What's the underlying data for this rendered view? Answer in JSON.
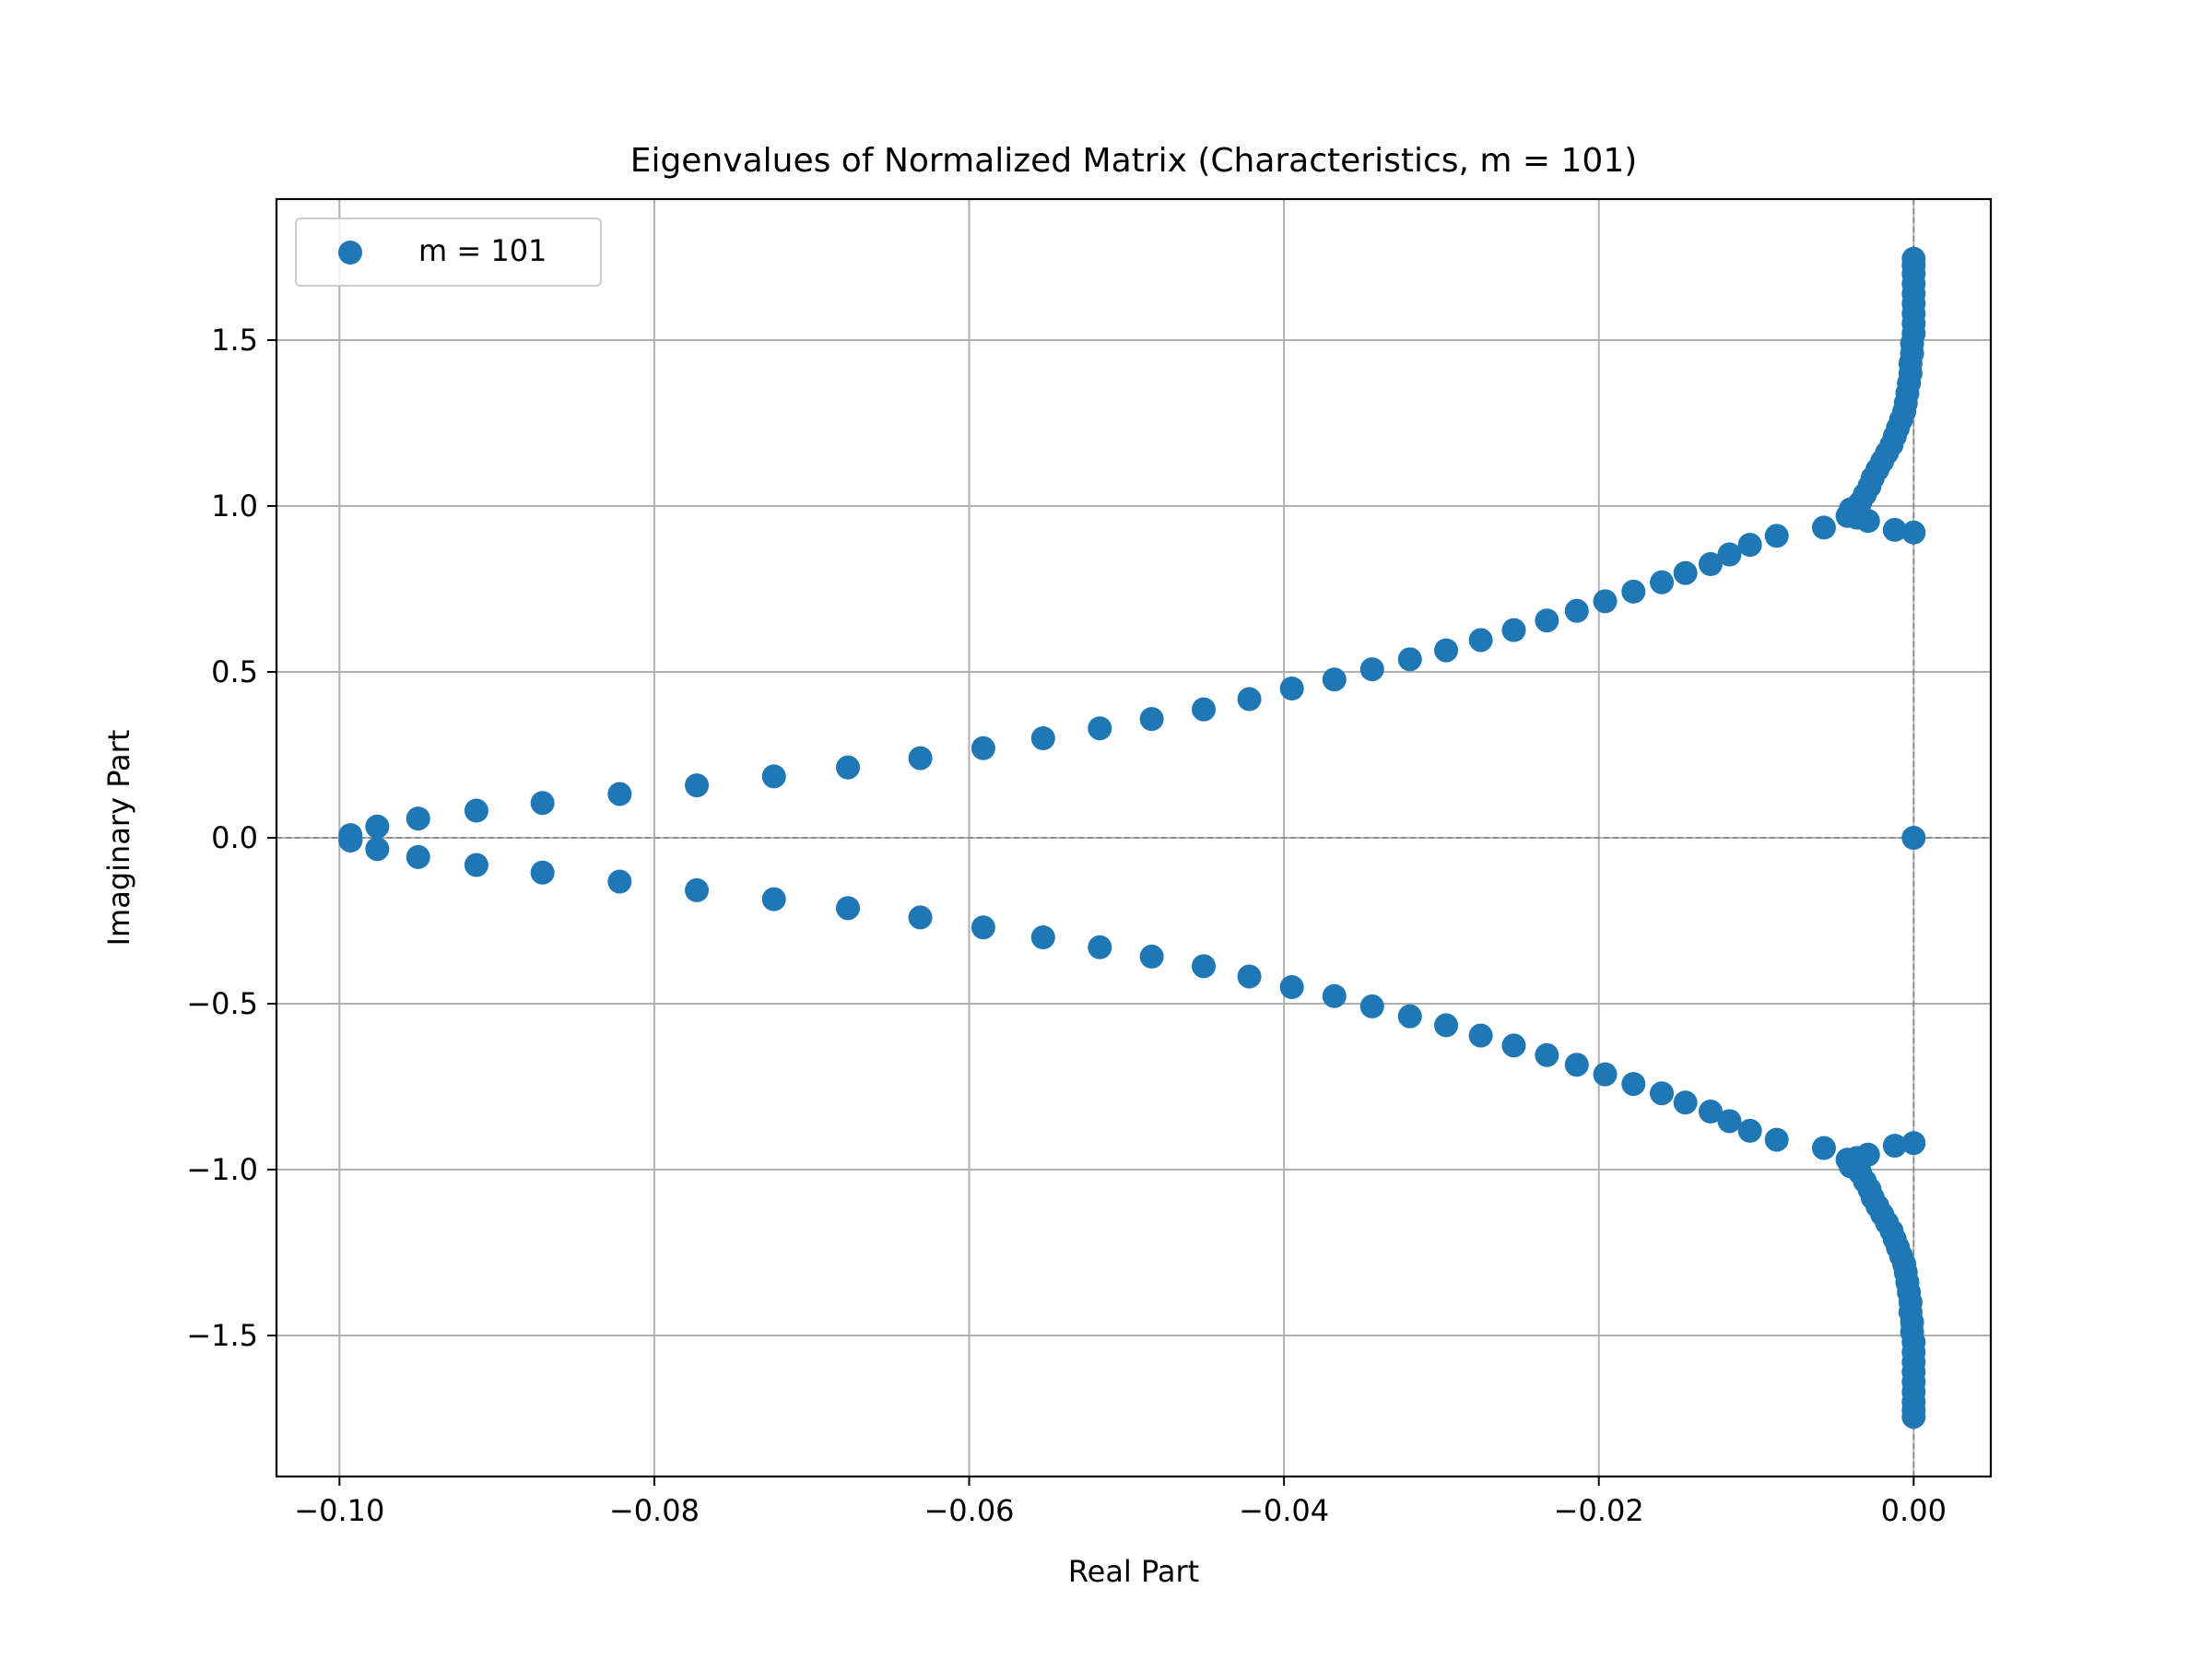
{
  "chart_data": {
    "type": "scatter",
    "title": "Eigenvalues of Normalized Matrix (Characteristics, m = 101)",
    "xlabel": "Real Part",
    "ylabel": "Imaginary Part",
    "xlim": [
      -0.104,
      0.0049
    ],
    "ylim": [
      -1.925,
      1.925
    ],
    "xticks": [
      -0.1,
      -0.08,
      -0.06,
      -0.04,
      -0.02,
      0.0
    ],
    "xtick_labels": [
      "−0.10",
      "−0.08",
      "−0.06",
      "−0.04",
      "−0.02",
      "0.00"
    ],
    "yticks": [
      -1.5,
      -1.0,
      -0.5,
      0.0,
      0.5,
      1.0,
      1.5
    ],
    "ytick_labels": [
      "−1.5",
      "−1.0",
      "−0.5",
      "0.0",
      "0.5",
      "1.0",
      "1.5"
    ],
    "grid": true,
    "zero_lines": true,
    "legend_placement": "top-left",
    "series": [
      {
        "name": "m = 101",
        "color": "#1f77b4",
        "points_upper_half": [
          [
            -0.0993,
            0.008
          ],
          [
            -0.0976,
            0.034
          ],
          [
            -0.095,
            0.058
          ],
          [
            -0.0913,
            0.082
          ],
          [
            -0.0871,
            0.105
          ],
          [
            -0.0822,
            0.132
          ],
          [
            -0.0773,
            0.158
          ],
          [
            -0.0724,
            0.185
          ],
          [
            -0.0677,
            0.212
          ],
          [
            -0.0631,
            0.24
          ],
          [
            -0.0591,
            0.27
          ],
          [
            -0.0553,
            0.3
          ],
          [
            -0.0517,
            0.33
          ],
          [
            -0.0484,
            0.358
          ],
          [
            -0.0451,
            0.387
          ],
          [
            -0.0422,
            0.418
          ],
          [
            -0.0395,
            0.45
          ],
          [
            -0.0368,
            0.477
          ],
          [
            -0.0344,
            0.508
          ],
          [
            -0.032,
            0.538
          ],
          [
            -0.0297,
            0.565
          ],
          [
            -0.0275,
            0.596
          ],
          [
            -0.0254,
            0.626
          ],
          [
            -0.0233,
            0.655
          ],
          [
            -0.0214,
            0.684
          ],
          [
            -0.0196,
            0.713
          ],
          [
            -0.0178,
            0.742
          ],
          [
            -0.016,
            0.77
          ],
          [
            -0.0145,
            0.798
          ],
          [
            -0.0129,
            0.825
          ],
          [
            -0.0117,
            0.854
          ],
          [
            -0.0104,
            0.883
          ],
          [
            -0.0087,
            0.91
          ],
          [
            -0.0057,
            0.935
          ],
          [
            -0.0042,
            0.97
          ],
          [
            -0.0036,
            0.965
          ],
          [
            -0.0029,
            0.955
          ],
          [
            -0.0012,
            0.928
          ],
          [
            0.0,
            0.92
          ],
          [
            -0.004,
            0.99
          ],
          [
            -0.0034,
            1.01
          ],
          [
            -0.0031,
            1.035
          ],
          [
            -0.0028,
            1.06
          ],
          [
            -0.0026,
            1.085
          ],
          [
            -0.0023,
            1.11
          ],
          [
            -0.002,
            1.135
          ],
          [
            -0.0017,
            1.16
          ],
          [
            -0.0014,
            1.185
          ],
          [
            -0.0012,
            1.21
          ],
          [
            -0.001,
            1.235
          ],
          [
            -0.0008,
            1.26
          ],
          [
            -0.0006,
            1.285
          ],
          [
            -0.0005,
            1.31
          ],
          [
            -0.0004,
            1.34
          ],
          [
            -0.0003,
            1.37
          ],
          [
            -0.0002,
            1.4
          ],
          [
            -0.0002,
            1.43
          ],
          [
            -0.0001,
            1.46
          ],
          [
            -0.0001,
            1.49
          ],
          [
            0.0,
            1.52
          ],
          [
            0.0,
            1.55
          ],
          [
            0.0,
            1.58
          ],
          [
            0.0,
            1.61
          ],
          [
            0.0,
            1.64
          ],
          [
            0.0,
            1.67
          ],
          [
            0.0,
            1.7
          ],
          [
            0.0,
            1.725
          ],
          [
            0.0,
            1.745
          ]
        ],
        "points_real": [
          [
            -0.0993,
            -0.008
          ],
          [
            0.0,
            0.0
          ]
        ],
        "mirrored_about_real_axis": true
      }
    ]
  }
}
